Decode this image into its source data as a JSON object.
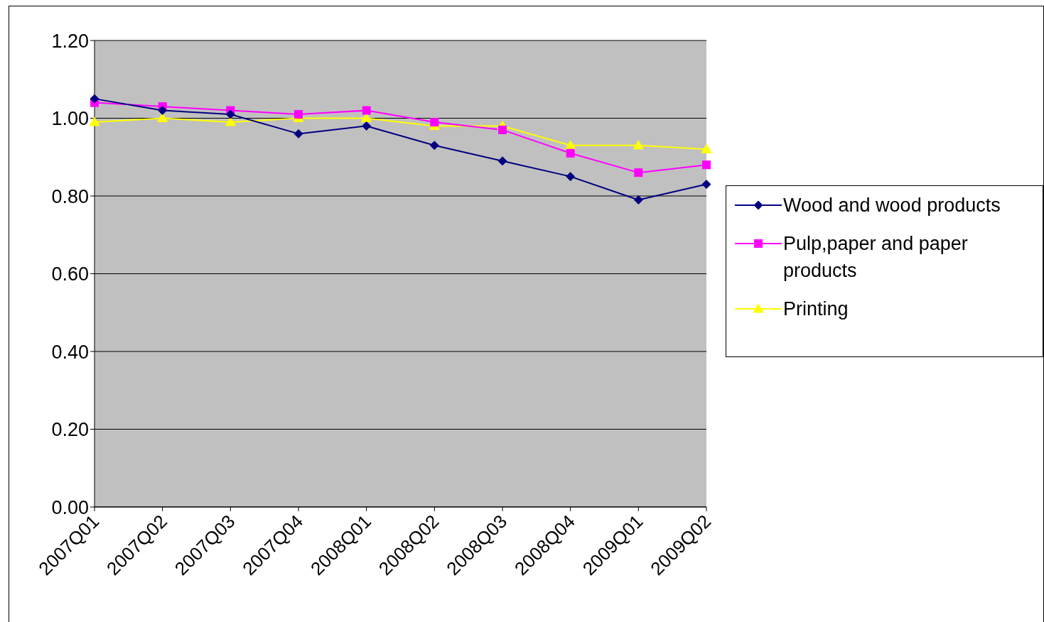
{
  "chart_data": {
    "type": "line",
    "categories": [
      "2007Q01",
      "2007Q02",
      "2007Q03",
      "2007Q04",
      "2008Q01",
      "2008Q02",
      "2008Q03",
      "2008Q04",
      "2009Q01",
      "2009Q02"
    ],
    "series": [
      {
        "name": "Wood and wood products",
        "color": "#000080",
        "marker": "diamond",
        "values": [
          1.05,
          1.02,
          1.01,
          0.96,
          0.98,
          0.93,
          0.89,
          0.85,
          0.79,
          0.83
        ]
      },
      {
        "name": "Pulp,paper and paper products",
        "color": "#ff00ff",
        "marker": "square",
        "values": [
          1.04,
          1.03,
          1.02,
          1.01,
          1.02,
          0.99,
          0.97,
          0.91,
          0.86,
          0.88
        ]
      },
      {
        "name": "Printing",
        "color": "#ffff00",
        "marker": "triangle",
        "values": [
          0.99,
          1.0,
          0.99,
          1.0,
          1.0,
          0.98,
          0.98,
          0.93,
          0.93,
          0.92
        ]
      }
    ],
    "ylim": [
      0,
      1.2
    ],
    "yticks": [
      {
        "value": 0,
        "label": "0.00"
      },
      {
        "value": 0.2,
        "label": "0.20"
      },
      {
        "value": 0.4,
        "label": "0.40"
      },
      {
        "value": 0.6,
        "label": "0.60"
      },
      {
        "value": 0.8,
        "label": "0.80"
      },
      {
        "value": 1.0,
        "label": "1.00"
      },
      {
        "value": 1.2,
        "label": "1.20"
      }
    ],
    "grid": "y",
    "legend": "right",
    "line_style": "solid"
  }
}
